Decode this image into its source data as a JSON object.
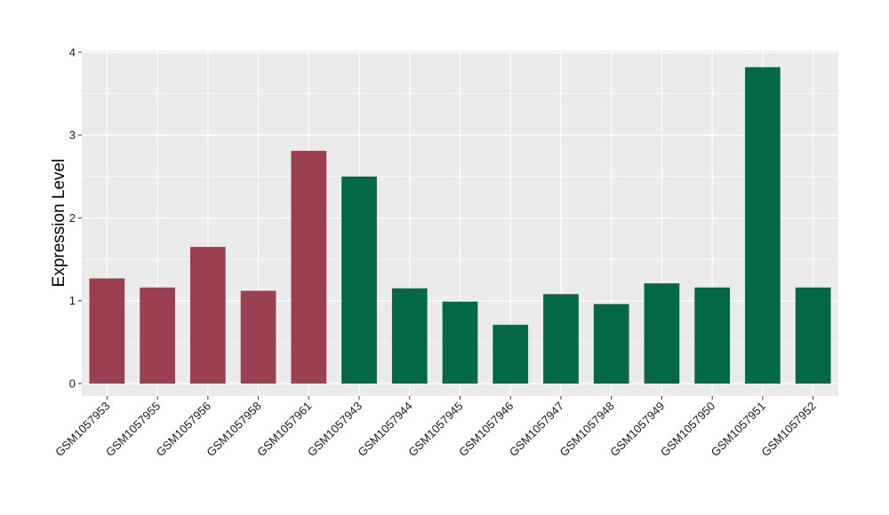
{
  "chart_data": {
    "type": "bar",
    "title": "",
    "xlabel": "",
    "ylabel": "Expression Level",
    "ylim": [
      -0.15,
      4.02
    ],
    "yticks": [
      0,
      1,
      2,
      3,
      4
    ],
    "grid": true,
    "background": "#ebebeb",
    "gridColor": "#ffffff",
    "categories": [
      "GSM1057953",
      "GSM1057955",
      "GSM1057956",
      "GSM1057958",
      "GSM1057961",
      "GSM1057943",
      "GSM1057944",
      "GSM1057945",
      "GSM1057946",
      "GSM1057947",
      "GSM1057948",
      "GSM1057949",
      "GSM1057950",
      "GSM1057951",
      "GSM1057952"
    ],
    "values": [
      1.27,
      1.16,
      1.65,
      1.12,
      2.81,
      2.5,
      1.15,
      0.99,
      0.71,
      1.08,
      0.96,
      1.21,
      1.16,
      3.82,
      1.16
    ],
    "colors": [
      "#9b4050",
      "#9b4050",
      "#9b4050",
      "#9b4050",
      "#9b4050",
      "#036846",
      "#036846",
      "#036846",
      "#036846",
      "#036846",
      "#036846",
      "#036846",
      "#036846",
      "#036846",
      "#036846"
    ]
  }
}
